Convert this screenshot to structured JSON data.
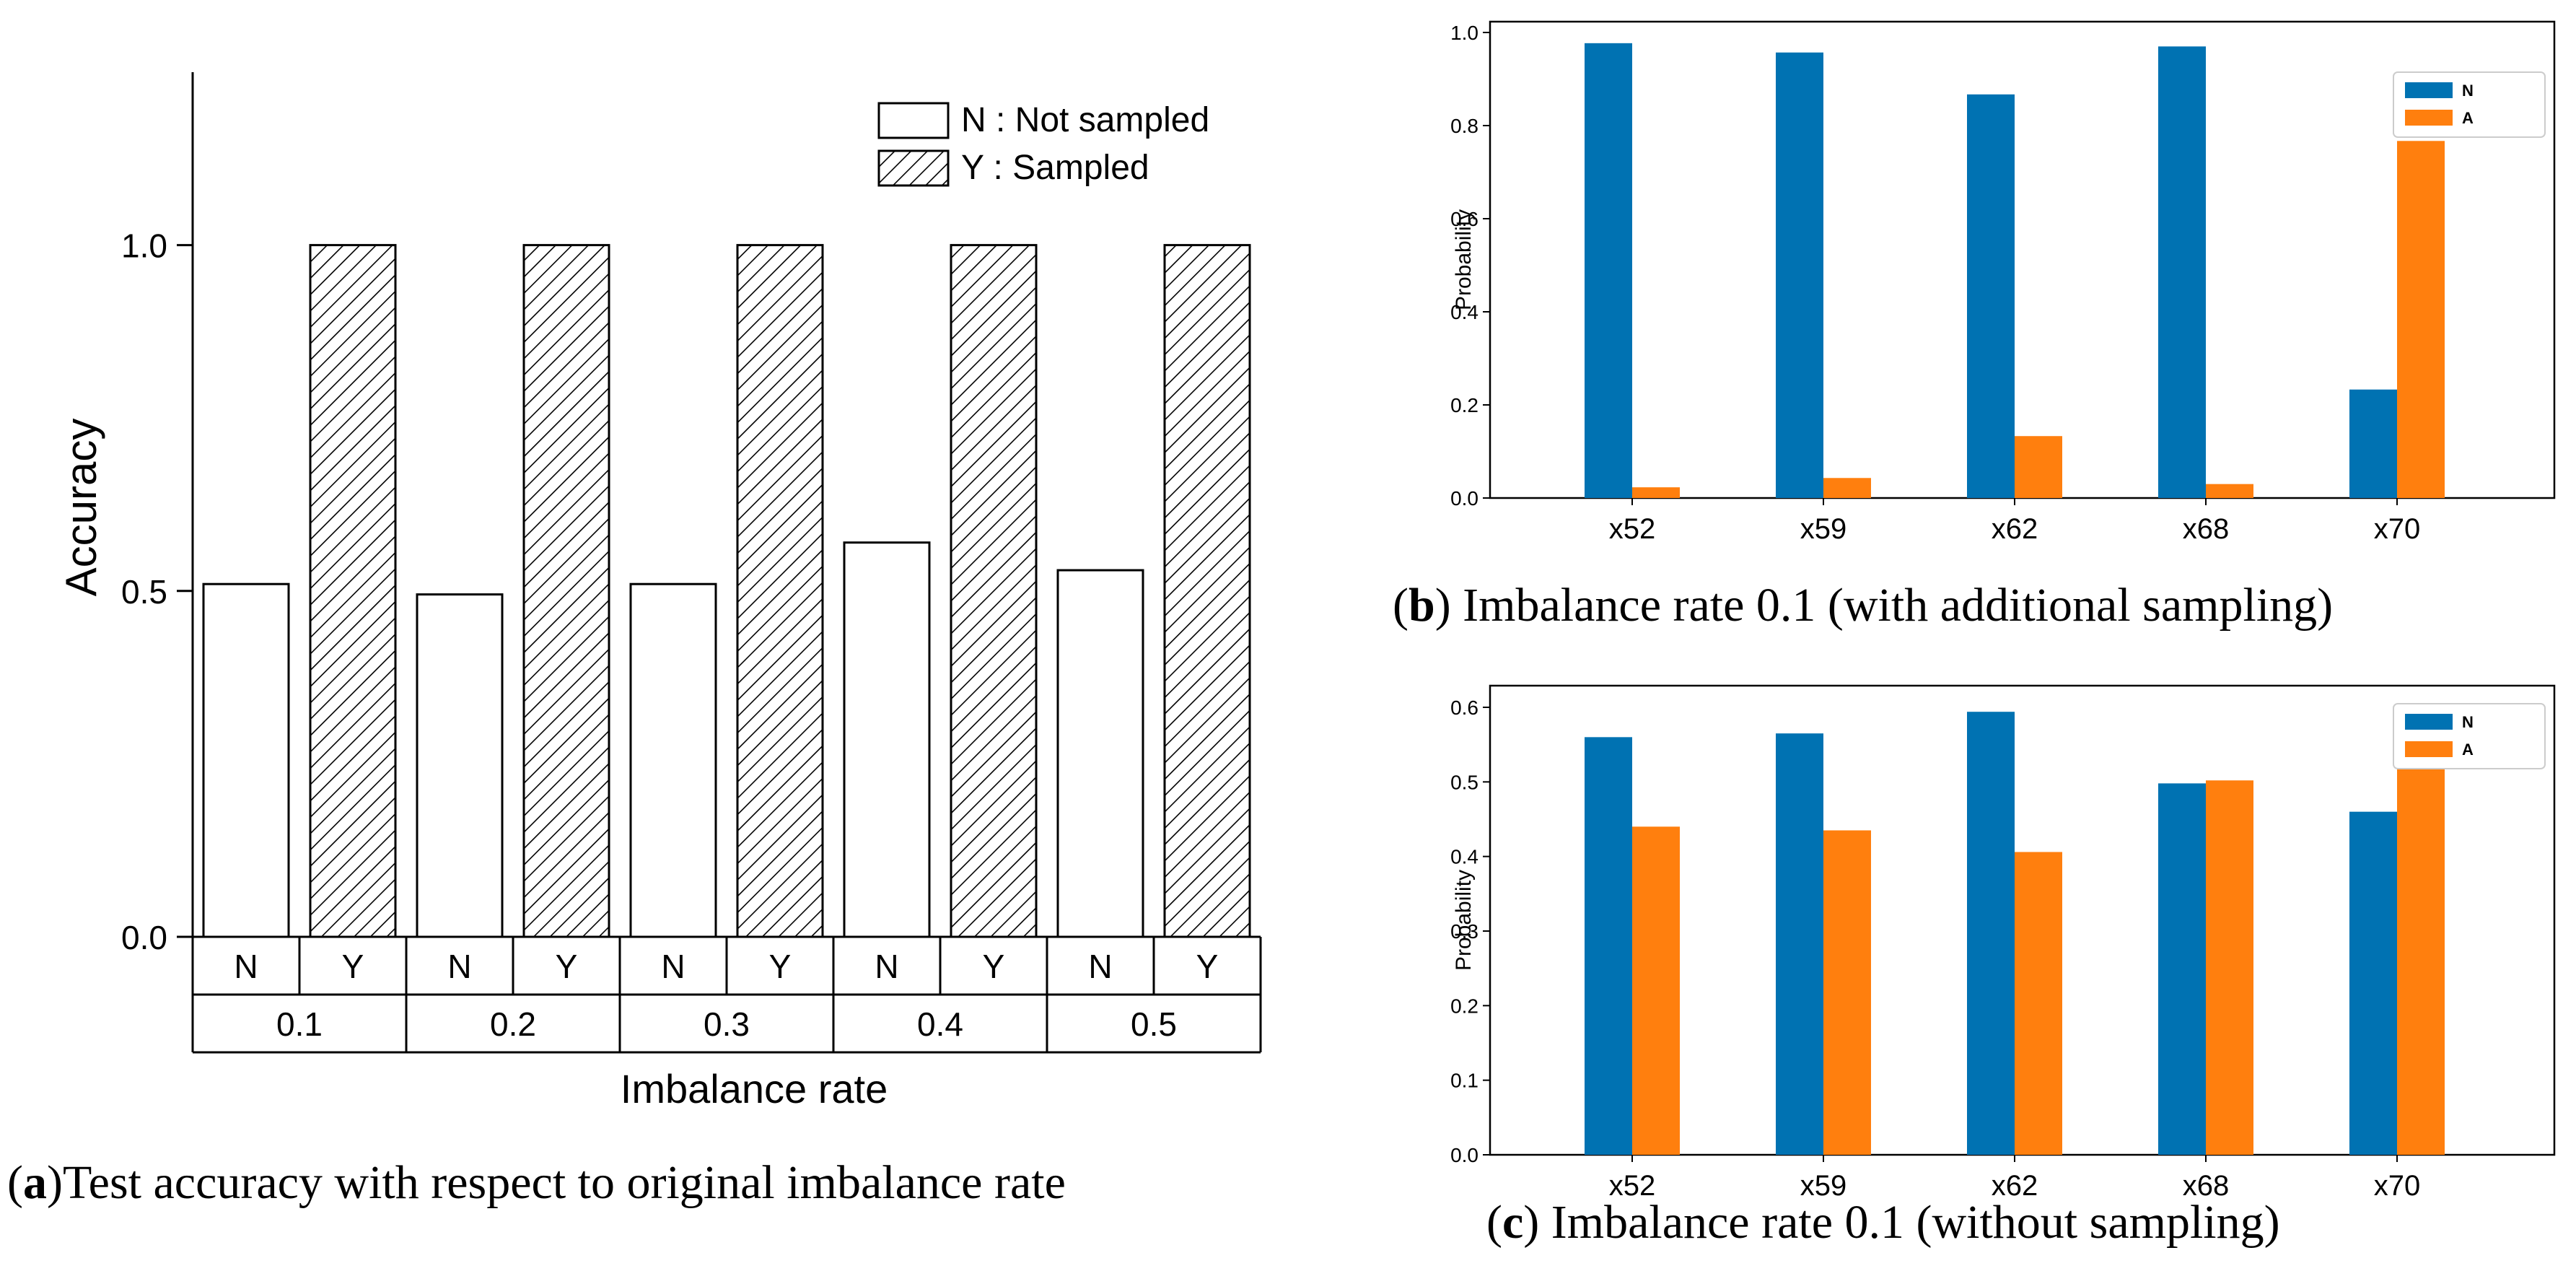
{
  "chart_data": [
    {
      "id": "a",
      "type": "bar",
      "caption": {
        "letter": "a",
        "text": ")Test accuracy with respect to original imbalance rate",
        "open": "("
      },
      "xlabel": "Imbalance rate",
      "ylabel": "Accuracy",
      "ylim": [
        0.0,
        1.25
      ],
      "yticks": [
        "0.0",
        "0.5",
        "1.0"
      ],
      "groups": [
        "0.1",
        "0.2",
        "0.3",
        "0.4",
        "0.5"
      ],
      "sublabels": [
        "N",
        "Y"
      ],
      "series": [
        {
          "name": "N : Not sampled",
          "key": "N",
          "style": "hollow",
          "values": [
            0.51,
            0.495,
            0.51,
            0.57,
            0.53
          ]
        },
        {
          "name": "Y : Sampled",
          "key": "Y",
          "style": "hatched",
          "values": [
            1.0,
            1.0,
            1.0,
            1.0,
            1.0
          ]
        }
      ],
      "legend_position": "top-right"
    },
    {
      "id": "b",
      "type": "bar",
      "caption": {
        "letter": "b",
        "text": ") Imbalance rate 0.1 (with additional sampling)",
        "open": "("
      },
      "ylabel": "Probability",
      "ylim": [
        0.0,
        1.0
      ],
      "yticks": [
        "0.0",
        "0.2",
        "0.4",
        "0.6",
        "0.8",
        "1.0"
      ],
      "categories": [
        "x52",
        "x59",
        "x62",
        "x68",
        "x70"
      ],
      "series": [
        {
          "name": "N",
          "color": "#0072b2",
          "values": [
            0.977,
            0.957,
            0.867,
            0.97,
            0.233
          ]
        },
        {
          "name": "A",
          "color": "#ff7f0e",
          "values": [
            0.023,
            0.043,
            0.133,
            0.03,
            0.767
          ]
        }
      ],
      "legend_position": "top-right"
    },
    {
      "id": "c",
      "type": "bar",
      "caption": {
        "letter": "c",
        "text": ") Imbalance rate 0.1 (without sampling)",
        "open": "("
      },
      "ylabel": "Probability",
      "ylim": [
        0.0,
        0.6
      ],
      "yticks": [
        "0.0",
        "0.1",
        "0.2",
        "0.3",
        "0.4",
        "0.5",
        "0.6"
      ],
      "categories": [
        "x52",
        "x59",
        "x62",
        "x68",
        "x70"
      ],
      "series": [
        {
          "name": "N",
          "color": "#0072b2",
          "values": [
            0.56,
            0.565,
            0.594,
            0.498,
            0.46
          ]
        },
        {
          "name": "A",
          "color": "#ff7f0e",
          "values": [
            0.44,
            0.435,
            0.406,
            0.502,
            0.54
          ]
        }
      ],
      "legend_position": "top-right"
    }
  ]
}
